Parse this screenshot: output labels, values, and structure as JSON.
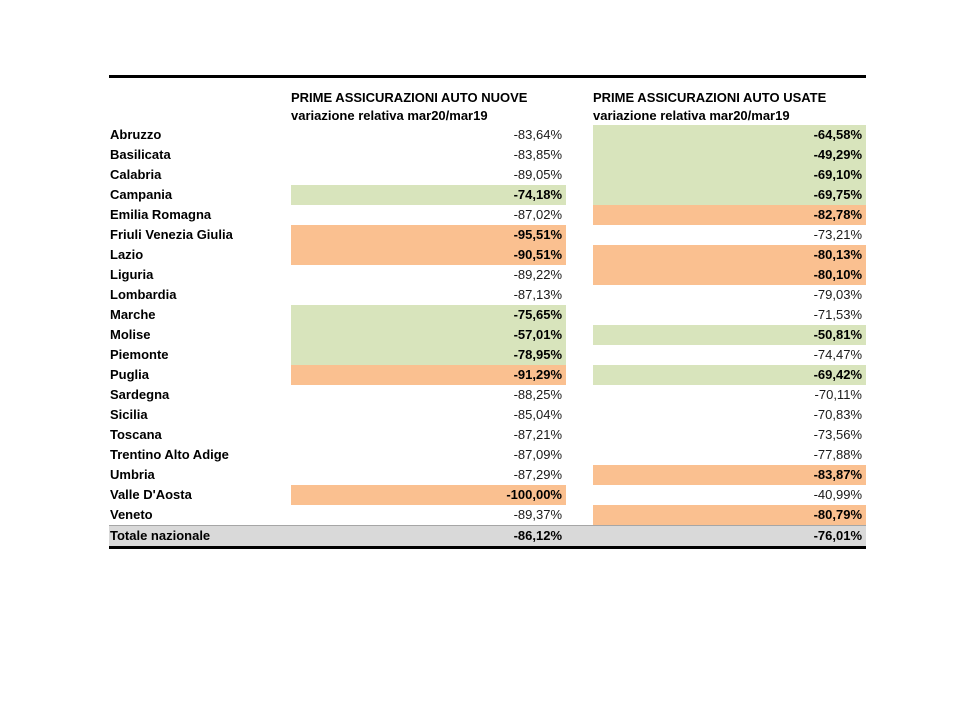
{
  "table": {
    "colors": {
      "green": "#D8E4BC",
      "orange": "#FAC090",
      "total_gray": "#D9D9D9"
    },
    "header_new": {
      "line1": "PRIME ASSICURAZIONI AUTO NUOVE",
      "line2": "variazione relativa mar20/mar19"
    },
    "header_used": {
      "line1": "PRIME ASSICURAZIONI AUTO USATE",
      "line2": "variazione relativa mar20/mar19"
    },
    "rows": [
      {
        "region": "Abruzzo",
        "new": "-83,64%",
        "new_hl": "none",
        "used": "-64,58%",
        "used_hl": "green"
      },
      {
        "region": "Basilicata",
        "new": "-83,85%",
        "new_hl": "none",
        "used": "-49,29%",
        "used_hl": "green"
      },
      {
        "region": "Calabria",
        "new": "-89,05%",
        "new_hl": "none",
        "used": "-69,10%",
        "used_hl": "green"
      },
      {
        "region": "Campania",
        "new": "-74,18%",
        "new_hl": "green",
        "used": "-69,75%",
        "used_hl": "green"
      },
      {
        "region": "Emilia Romagna",
        "new": "-87,02%",
        "new_hl": "none",
        "used": "-82,78%",
        "used_hl": "orange"
      },
      {
        "region": "Friuli Venezia Giulia",
        "new": "-95,51%",
        "new_hl": "orange",
        "used": "-73,21%",
        "used_hl": "none"
      },
      {
        "region": "Lazio",
        "new": "-90,51%",
        "new_hl": "orange",
        "used": "-80,13%",
        "used_hl": "orange"
      },
      {
        "region": "Liguria",
        "new": "-89,22%",
        "new_hl": "none",
        "used": "-80,10%",
        "used_hl": "orange"
      },
      {
        "region": "Lombardia",
        "new": "-87,13%",
        "new_hl": "none",
        "used": "-79,03%",
        "used_hl": "none"
      },
      {
        "region": "Marche",
        "new": "-75,65%",
        "new_hl": "green",
        "used": "-71,53%",
        "used_hl": "none"
      },
      {
        "region": "Molise",
        "new": "-57,01%",
        "new_hl": "green",
        "used": "-50,81%",
        "used_hl": "green"
      },
      {
        "region": "Piemonte",
        "new": "-78,95%",
        "new_hl": "green",
        "used": "-74,47%",
        "used_hl": "none"
      },
      {
        "region": "Puglia",
        "new": "-91,29%",
        "new_hl": "orange",
        "used": "-69,42%",
        "used_hl": "green"
      },
      {
        "region": "Sardegna",
        "new": "-88,25%",
        "new_hl": "none",
        "used": "-70,11%",
        "used_hl": "none"
      },
      {
        "region": "Sicilia",
        "new": "-85,04%",
        "new_hl": "none",
        "used": "-70,83%",
        "used_hl": "none"
      },
      {
        "region": "Toscana",
        "new": "-87,21%",
        "new_hl": "none",
        "used": "-73,56%",
        "used_hl": "none"
      },
      {
        "region": "Trentino Alto Adige",
        "new": "-87,09%",
        "new_hl": "none",
        "used": "-77,88%",
        "used_hl": "none"
      },
      {
        "region": "Umbria",
        "new": "-87,29%",
        "new_hl": "none",
        "used": "-83,87%",
        "used_hl": "orange"
      },
      {
        "region": "Valle D'Aosta",
        "new": "-100,00%",
        "new_hl": "orange",
        "used": "-40,99%",
        "used_hl": "none"
      },
      {
        "region": "Veneto",
        "new": "-89,37%",
        "new_hl": "none",
        "used": "-80,79%",
        "used_hl": "orange"
      }
    ],
    "total": {
      "region": "Totale nazionale",
      "new": "-86,12%",
      "used": "-76,01%"
    }
  }
}
